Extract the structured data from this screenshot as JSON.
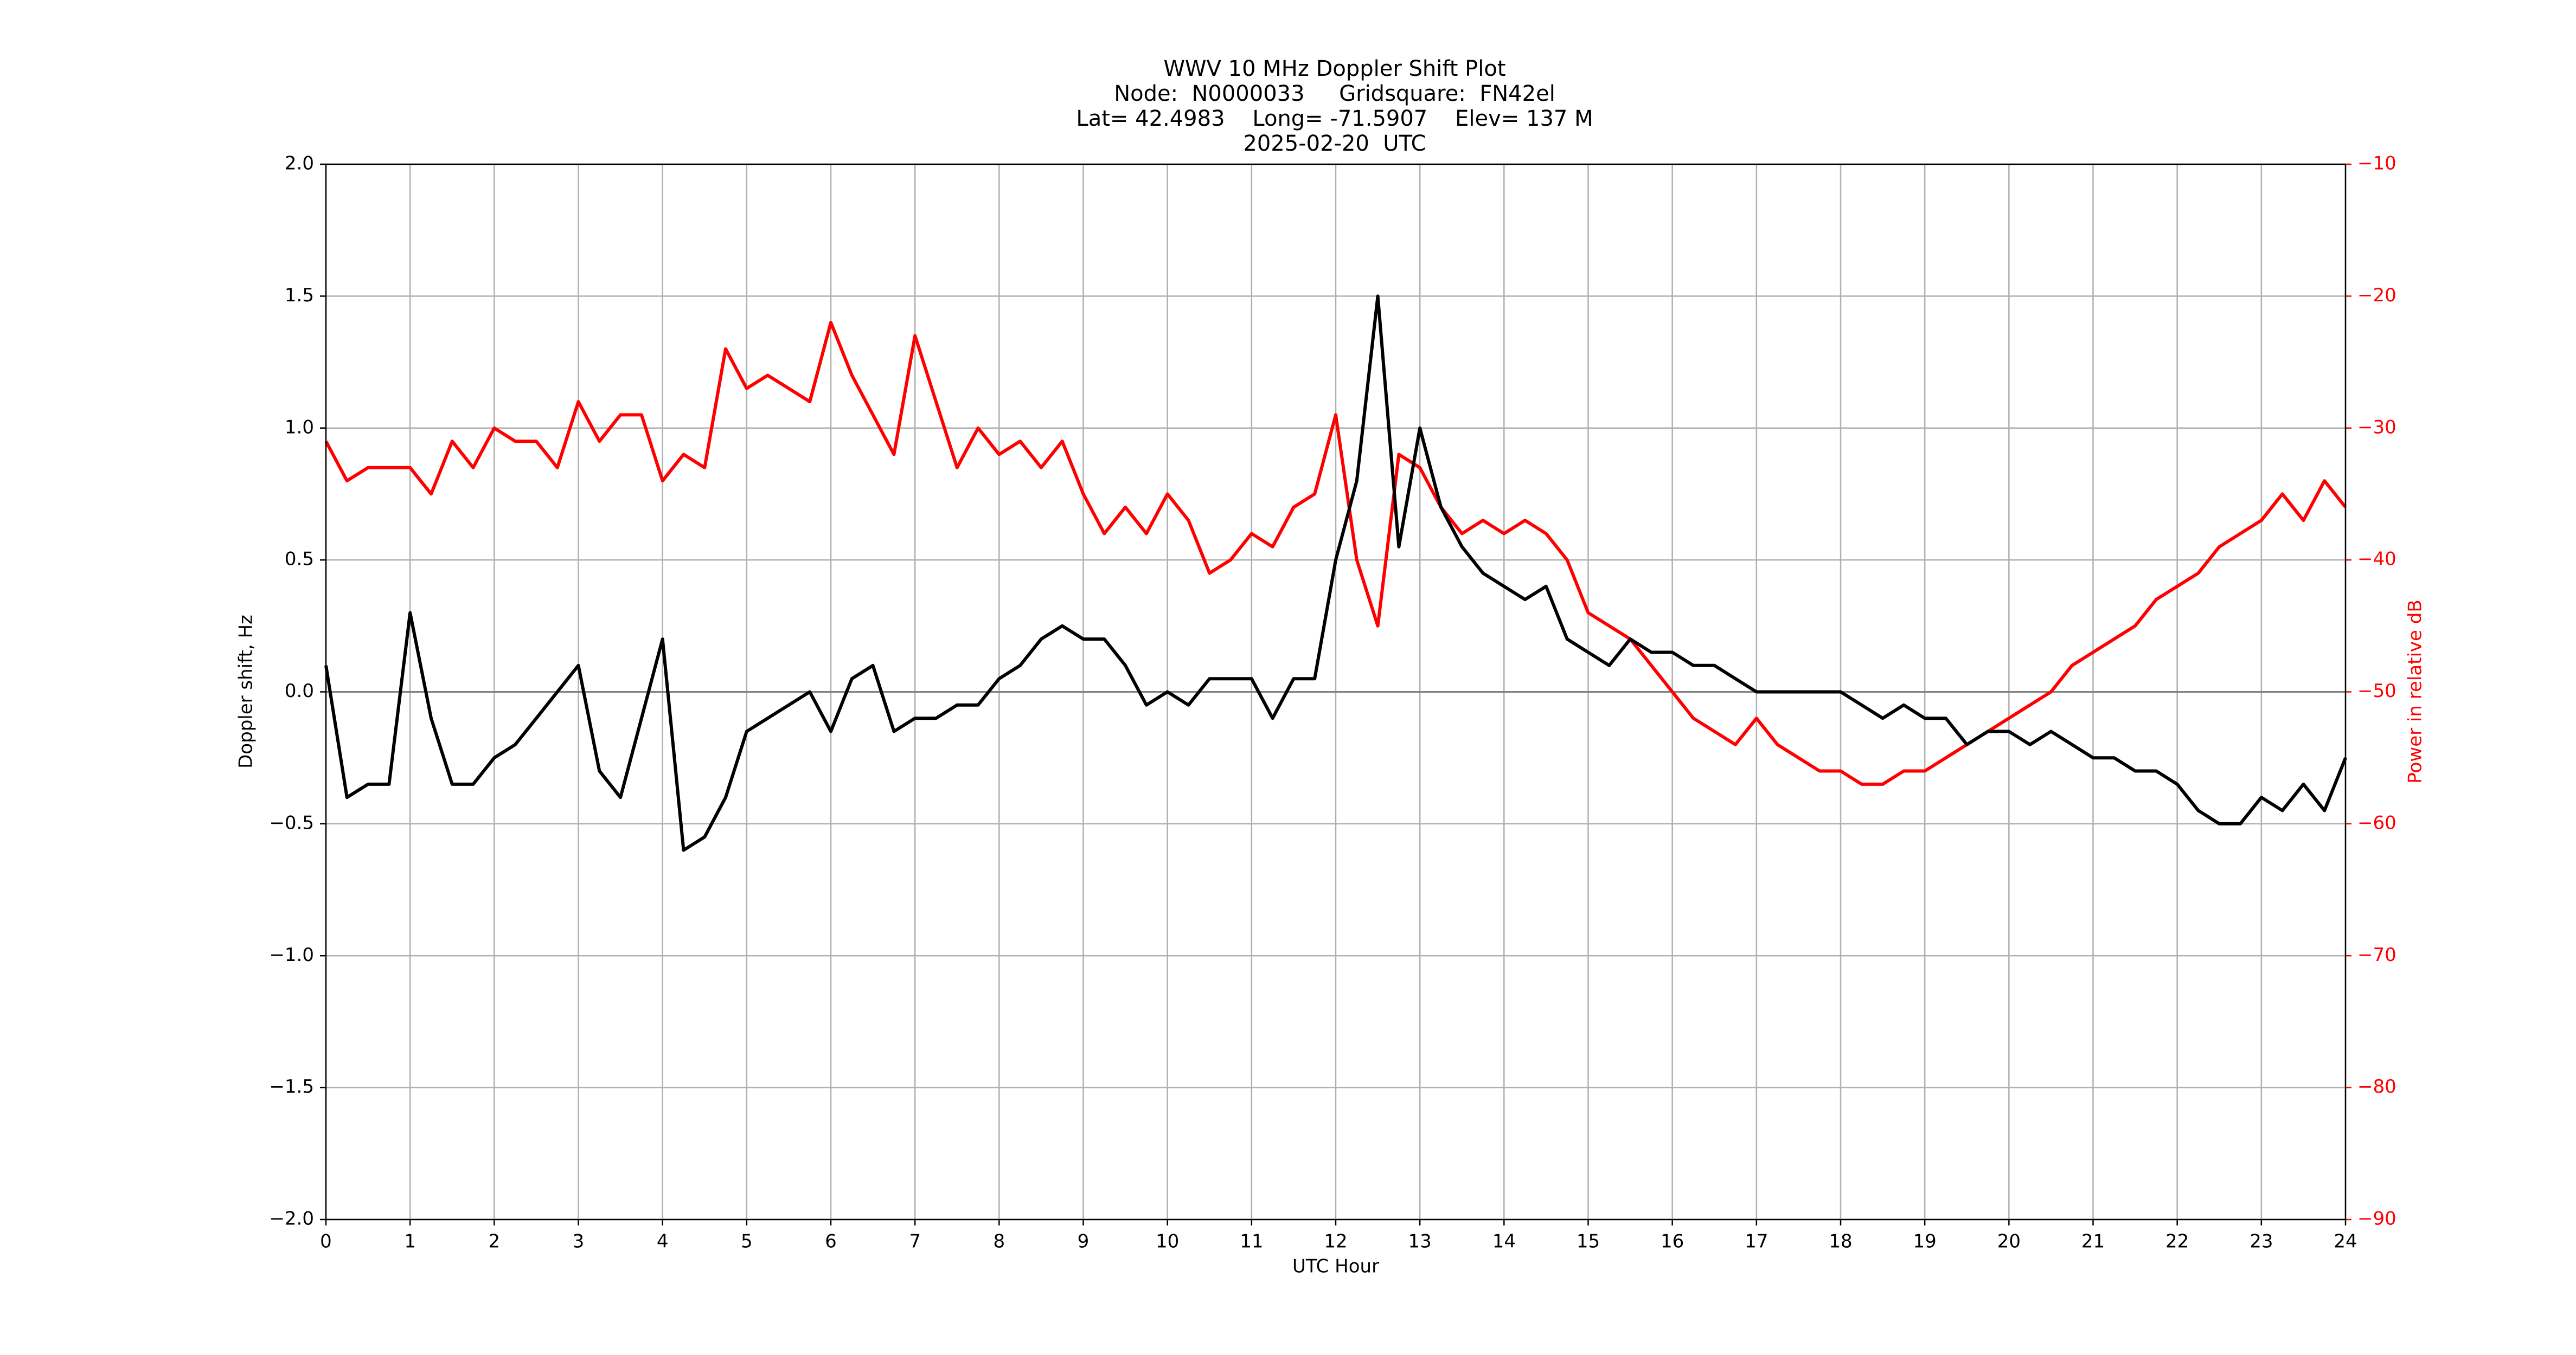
{
  "chart_data": {
    "type": "line",
    "title": [
      "WWV 10 MHz Doppler Shift Plot",
      "Node:  N0000033     Gridsquare:  FN42el",
      "Lat= 42.4983    Long= -71.5907    Elev= 137 M",
      "2025-02-20  UTC"
    ],
    "xlabel": "UTC Hour",
    "ylabel": "Doppler shift, Hz",
    "y2label": "Power in relative dB",
    "xlim": [
      0,
      24
    ],
    "xticks": [
      0,
      1,
      2,
      3,
      4,
      5,
      6,
      7,
      8,
      9,
      10,
      11,
      12,
      13,
      14,
      15,
      16,
      17,
      18,
      19,
      20,
      21,
      22,
      23,
      24
    ],
    "ylim": [
      -2,
      2
    ],
    "yticks": [
      {
        "value": -2,
        "label": "−2.0"
      },
      {
        "value": -1.5,
        "label": "−1.5"
      },
      {
        "value": -1,
        "label": "−1.0"
      },
      {
        "value": -0.5,
        "label": "−0.5"
      },
      {
        "value": 0,
        "label": "0.0"
      },
      0.5,
      {
        "value": 1,
        "label": "1.0"
      },
      1.5,
      {
        "value": 2,
        "label": "2.0"
      }
    ],
    "y2lim": [
      -90,
      -10
    ],
    "y2ticks": [
      {
        "value": -90,
        "label": "−90"
      },
      {
        "value": -80,
        "label": "−80"
      },
      {
        "value": -70,
        "label": "−70"
      },
      {
        "value": -60,
        "label": "−60"
      },
      {
        "value": -50,
        "label": "−50"
      },
      {
        "value": -40,
        "label": "−40"
      },
      {
        "value": -30,
        "label": "−30"
      },
      {
        "value": -20,
        "label": "−20"
      },
      {
        "value": -10,
        "label": "−10"
      }
    ],
    "grid": true,
    "hline": 0,
    "x": [
      0,
      0.25,
      0.5,
      0.75,
      1,
      1.25,
      1.5,
      1.75,
      2,
      2.25,
      2.5,
      2.75,
      3,
      3.25,
      3.5,
      3.75,
      4,
      4.25,
      4.5,
      4.75,
      5,
      5.25,
      5.5,
      5.75,
      6,
      6.25,
      6.5,
      6.75,
      7,
      7.25,
      7.5,
      7.75,
      8,
      8.25,
      8.5,
      8.75,
      9,
      9.25,
      9.5,
      9.75,
      10,
      10.25,
      10.5,
      10.75,
      11,
      11.25,
      11.5,
      11.75,
      12,
      12.25,
      12.5,
      12.75,
      13,
      13.25,
      13.5,
      13.75,
      14,
      14.25,
      14.5,
      14.75,
      15,
      15.25,
      15.5,
      15.75,
      16,
      16.25,
      16.5,
      16.75,
      17,
      17.25,
      17.5,
      17.75,
      18,
      18.25,
      18.5,
      18.75,
      19,
      19.25,
      19.5,
      19.75,
      20,
      20.25,
      20.5,
      20.75,
      21,
      21.25,
      21.5,
      21.75,
      22,
      22.25,
      22.5,
      22.75,
      23,
      23.25,
      23.5,
      23.75,
      24
    ],
    "series": [
      {
        "color": "#ff0000",
        "axis": "y2",
        "values": [
          -31,
          -34,
          -33,
          -33,
          -33,
          -35,
          -31,
          -33,
          -30,
          -31,
          -31,
          -33,
          -28,
          -31,
          -29,
          -29,
          -34,
          -32,
          -33,
          -24,
          -27,
          -26,
          -27,
          -28,
          -22,
          -26,
          -29,
          -32,
          -23,
          -28,
          -33,
          -30,
          -32,
          -31,
          -33,
          -31,
          -35,
          -38,
          -36,
          -38,
          -35,
          -37,
          -41,
          -40,
          -38,
          -39,
          -36,
          -35,
          -29,
          -40,
          -45,
          -32,
          -33,
          -36,
          -38,
          -37,
          -38,
          -37,
          -38,
          -40,
          -44,
          -45,
          -46,
          -48,
          -50,
          -52,
          -53,
          -54,
          -52,
          -54,
          -55,
          -56,
          -56,
          -57,
          -57,
          -56,
          -56,
          -55,
          -54,
          -53,
          -52,
          -51,
          -50,
          -48,
          -47,
          -46,
          -45,
          -43,
          -42,
          -41,
          -39,
          -38,
          -37,
          -35,
          -37,
          -34,
          -36
        ]
      },
      {
        "color": "#000000",
        "values": [
          0.1,
          -0.4,
          -0.35,
          -0.35,
          0.3,
          -0.1,
          -0.35,
          -0.35,
          -0.25,
          -0.2,
          -0.1,
          0,
          0.1,
          -0.3,
          -0.4,
          -0.1,
          0.2,
          -0.6,
          -0.55,
          -0.4,
          -0.15,
          -0.1,
          -0.05,
          0,
          -0.15,
          0.05,
          0.1,
          -0.15,
          -0.1,
          -0.1,
          -0.05,
          -0.05,
          0.05,
          0.1,
          0.2,
          0.25,
          0.2,
          0.2,
          0.1,
          -0.05,
          0,
          -0.05,
          0.05,
          0.05,
          0.05,
          -0.1,
          0.05,
          0.05,
          0.5,
          0.8,
          1.5,
          0.55,
          1,
          0.7,
          0.55,
          0.45,
          0.4,
          0.35,
          0.4,
          0.2,
          0.15,
          0.1,
          0.2,
          0.15,
          0.15,
          0.1,
          0.1,
          0.05,
          0,
          0,
          0,
          0,
          0,
          -0.05,
          -0.1,
          -0.05,
          -0.1,
          -0.1,
          -0.2,
          -0.15,
          -0.15,
          -0.2,
          -0.15,
          -0.2,
          -0.25,
          -0.25,
          -0.3,
          -0.3,
          -0.35,
          -0.45,
          -0.5,
          -0.5,
          -0.4,
          -0.45,
          -0.35,
          -0.45,
          -0.25
        ]
      }
    ]
  }
}
